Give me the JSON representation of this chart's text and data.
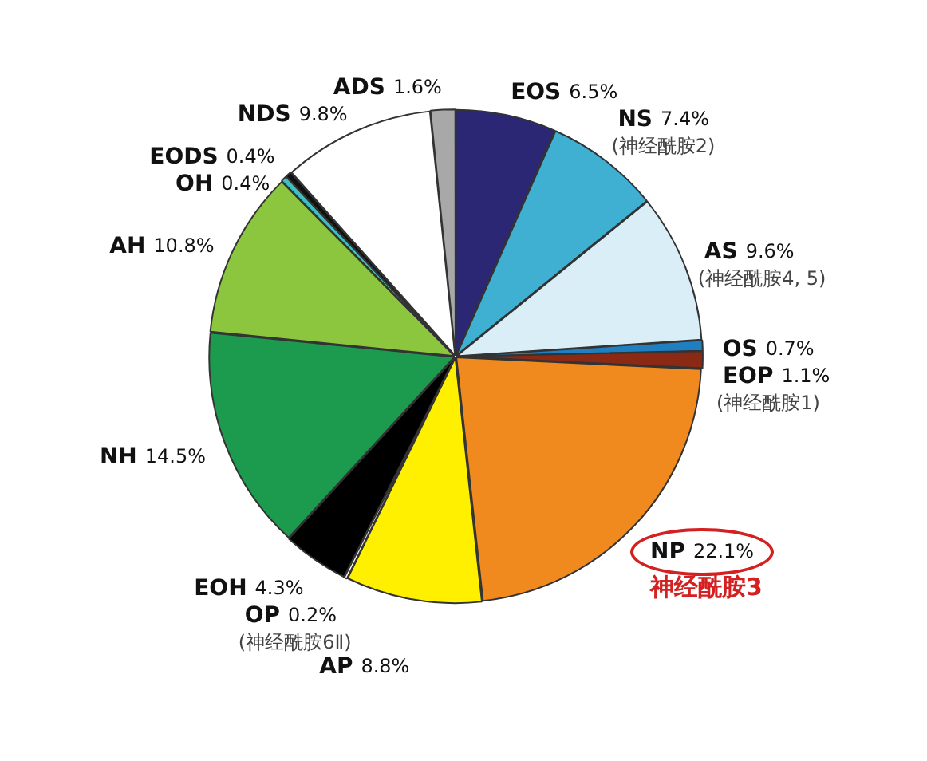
{
  "chart_data": {
    "type": "pie",
    "categories": [
      "EOS",
      "NS",
      "AS",
      "OS",
      "EOP",
      "NP",
      "AP",
      "OP",
      "EOH",
      "NH",
      "AH",
      "OH",
      "EODS",
      "NDS",
      "ADS"
    ],
    "values": [
      6.5,
      7.4,
      9.6,
      0.7,
      1.1,
      22.1,
      8.8,
      0.2,
      4.3,
      14.5,
      10.8,
      0.4,
      0.4,
      9.8,
      1.6
    ],
    "value_labels": [
      "6.5%",
      "7.4%",
      "9.6%",
      "0.7%",
      "1.1%",
      "22.1%",
      "8.8%",
      "0.2%",
      "4.3%",
      "14.5%",
      "10.8%",
      "0.4%",
      "0.4%",
      "9.8%",
      "1.6%"
    ],
    "colors": [
      "#2b2775",
      "#3fb0d2",
      "#d9eef6",
      "#1f7fc0",
      "#8a2a14",
      "#f08a1e",
      "#fff000",
      "#ffffff",
      "#000000",
      "#1c9a4e",
      "#8cc63f",
      "#3fbfc0",
      "#111111",
      "#ffffff",
      "#a8a8a8"
    ],
    "annotations": [
      {
        "text": "(神经酰胺2)",
        "x": "NS"
      },
      {
        "text": "(神经酰胺4, 5)",
        "x": "AS"
      },
      {
        "text": "(神经酰胺1)",
        "x": "EOP"
      },
      {
        "text": "神经酰胺3",
        "x": "NP"
      },
      {
        "text": "(神经酰胺6Ⅱ)",
        "x": "OP"
      }
    ],
    "legend": false
  }
}
